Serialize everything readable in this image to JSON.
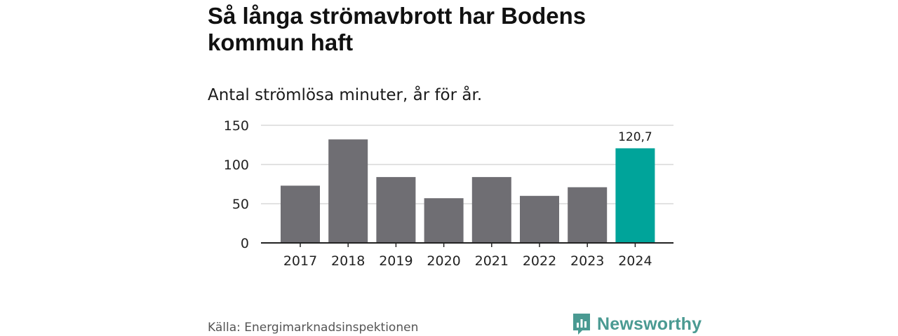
{
  "title": "Så långa strömavbrott har Bodens kommun haft",
  "subtitle": "Antal strömlösa minuter, år för år.",
  "source": "Källa: Energimarknadsinspektionen",
  "brand": {
    "name": "Newsworthy",
    "icon": "newsworthy-logo-icon",
    "color": "#4a9a92"
  },
  "chart_data": {
    "type": "bar",
    "title": "Så långa strömavbrott har Bodens kommun haft",
    "subtitle": "Antal strömlösa minuter, år för år.",
    "xlabel": "",
    "ylabel": "",
    "categories": [
      "2017",
      "2018",
      "2019",
      "2020",
      "2021",
      "2022",
      "2023",
      "2024"
    ],
    "values": [
      73,
      132,
      84,
      57,
      84,
      60,
      71,
      120.7
    ],
    "ylim": [
      0,
      150
    ],
    "yticks": [
      {
        "value": 0,
        "label": "0"
      },
      {
        "value": 50,
        "label": "50"
      },
      {
        "value": 100,
        "label": "100"
      },
      {
        "value": 150,
        "label": "150"
      }
    ],
    "grid": true,
    "highlight": {
      "index": 7,
      "label": "120,7"
    },
    "colors": {
      "bar": "#6f6e73",
      "highlight": "#00a49a",
      "grid": "#d9d9d9",
      "axis": "#222222"
    }
  }
}
